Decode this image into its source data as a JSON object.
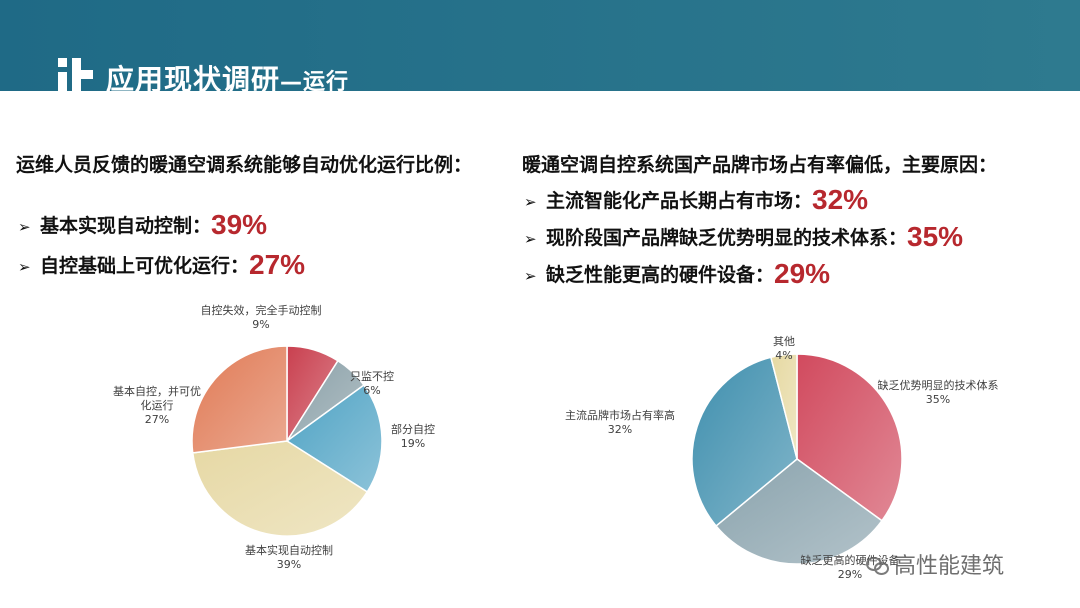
{
  "header": {
    "title": "应用现状调研",
    "subtitle": "—运行"
  },
  "left": {
    "title": "运维人员反馈的暖通空调系统能够自动优化运行比例：",
    "bullets": [
      {
        "text": "基本实现自动控制：",
        "pct": "39%"
      },
      {
        "text": "自控基础上可优化运行：",
        "pct": "27%"
      }
    ]
  },
  "right": {
    "title": "暖通空调自控系统国产品牌市场占有率偏低，主要原因：",
    "bullets": [
      {
        "text": "主流智能化产品长期占有市场：",
        "pct": "32%"
      },
      {
        "text": "现阶段国产品牌缺乏优势明显的技术体系：",
        "pct": "35%"
      },
      {
        "text": "缺乏性能更高的硬件设备：",
        "pct": "29%"
      }
    ]
  },
  "chart_data": [
    {
      "type": "pie",
      "start_angle_deg": -90,
      "slices": [
        {
          "label_lines": [
            "自控失效，完全手动控制"
          ],
          "value": 9,
          "value_label": "9%",
          "color": "#c9404f"
        },
        {
          "label_lines": [
            "只监不控"
          ],
          "value": 6,
          "value_label": "6%",
          "color": "#8aa0a8"
        },
        {
          "label_lines": [
            "部分自控"
          ],
          "value": 19,
          "value_label": "19%",
          "color": "#4fa3c4"
        },
        {
          "label_lines": [
            "基本实现自动控制"
          ],
          "value": 39,
          "value_label": "39%",
          "color": "#e6d8a4"
        },
        {
          "label_lines": [
            "基本自控，并可优",
            "化运行"
          ],
          "value": 27,
          "value_label": "27%",
          "color": "#e07a55"
        }
      ]
    },
    {
      "type": "pie",
      "start_angle_deg": -90,
      "slices": [
        {
          "label_lines": [
            "缺乏优势明显的技术体系"
          ],
          "value": 35,
          "value_label": "35%",
          "color": "#d14a5e"
        },
        {
          "label_lines": [
            "缺乏更高的硬件设备"
          ],
          "value": 29,
          "value_label": "29%",
          "color": "#8aa3ad"
        },
        {
          "label_lines": [
            "主流品牌市场占有率高"
          ],
          "value": 32,
          "value_label": "32%",
          "color": "#3f8fae"
        },
        {
          "label_lines": [
            "其他"
          ],
          "value": 4,
          "value_label": "4%",
          "color": "#e6d9a2"
        }
      ]
    }
  ],
  "watermark": {
    "text": "高性能建筑"
  }
}
